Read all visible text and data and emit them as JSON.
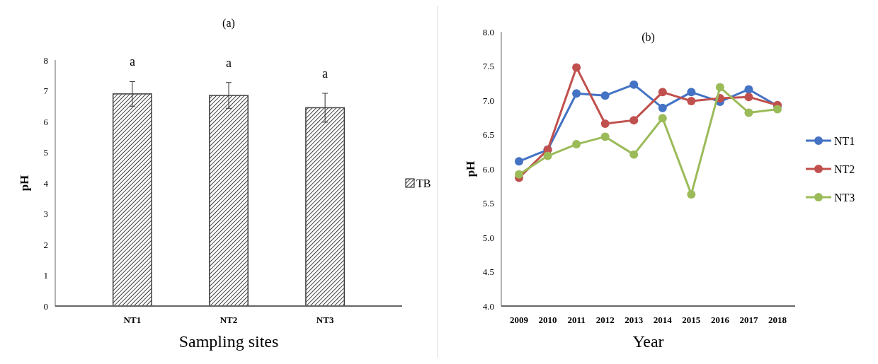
{
  "chart_data": [
    {
      "type": "bar",
      "title": "(a)",
      "xlabel": "Sampling sites",
      "ylabel": "pH",
      "categories": [
        "NT1",
        "NT2",
        "NT3"
      ],
      "series": [
        {
          "name": "TB",
          "color": "#404040",
          "values": [
            6.9,
            6.85,
            6.45
          ],
          "errors": [
            0.4,
            0.42,
            0.47
          ]
        }
      ],
      "ylim": [
        0,
        8
      ],
      "yticks": [
        0,
        1,
        2,
        3,
        4,
        5,
        6,
        7,
        8
      ],
      "legend": "right",
      "annotations": [
        "a",
        "a",
        "a"
      ]
    },
    {
      "type": "line",
      "title": "(b)",
      "xlabel": "Year",
      "ylabel": "pH",
      "categories": [
        "2009",
        "2010",
        "2011",
        "2012",
        "2013",
        "2014",
        "2015",
        "2016",
        "2017",
        "2018"
      ],
      "series": [
        {
          "name": "NT1",
          "color": "#4472c4",
          "values": [
            6.11,
            6.28,
            7.1,
            7.07,
            7.23,
            6.89,
            7.12,
            6.98,
            7.16,
            6.92
          ]
        },
        {
          "name": "NT2",
          "color": "#c0504d",
          "values": [
            5.87,
            6.28,
            7.48,
            6.66,
            6.71,
            7.12,
            6.99,
            7.03,
            7.05,
            6.93
          ]
        },
        {
          "name": "NT3",
          "color": "#9bbb59",
          "values": [
            5.92,
            6.19,
            6.36,
            6.47,
            6.21,
            6.74,
            5.63,
            7.19,
            6.82,
            6.87
          ]
        }
      ],
      "ylim": [
        4,
        8
      ],
      "yticks": [
        {
          "value": 4,
          "label": "4.0"
        },
        {
          "value": 4.5,
          "label": "4.5"
        },
        {
          "value": 5,
          "label": "5.0"
        },
        {
          "value": 5.5,
          "label": "5.5"
        },
        {
          "value": 6,
          "label": "6.0"
        },
        {
          "value": 6.5,
          "label": "6.5"
        },
        {
          "value": 7,
          "label": "7.0"
        },
        {
          "value": 7.5,
          "label": "7.5"
        },
        {
          "value": 8,
          "label": "8.0"
        }
      ],
      "legend": "right",
      "marker": "circle",
      "line_style": "solid"
    }
  ]
}
